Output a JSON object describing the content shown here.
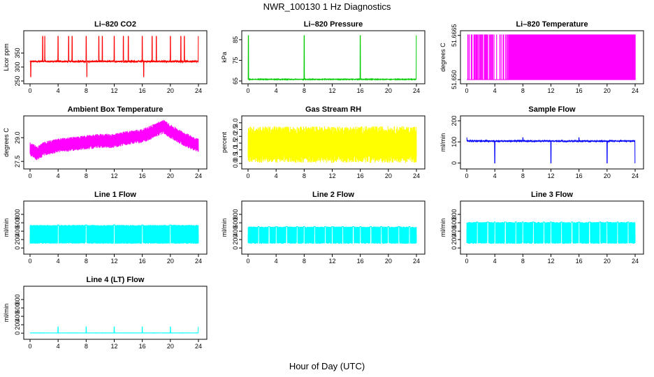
{
  "figure": {
    "title": "NWR_100130  1 Hz Diagnostics",
    "xlabel": "Hour of Day (UTC)"
  },
  "chart_data": [
    {
      "type": "line",
      "title": "Li–820 CO2",
      "ylabel": "Licor ppm",
      "color": "#ff0000",
      "xlim": [
        0,
        24.3
      ],
      "ylim": [
        250,
        420
      ],
      "xticks": [
        "0",
        "4",
        "8",
        "12",
        "16",
        "20",
        "24"
      ],
      "yticks": [
        {
          "v": 250,
          "label": "250"
        },
        {
          "v": 300,
          "label": "300"
        },
        {
          "v": 350,
          "label": "350"
        }
      ],
      "pattern": "co2",
      "base": 320,
      "noise": 3,
      "spikes": [
        1.8,
        2.1,
        4.0,
        5.5,
        6.0,
        8.0,
        9.8,
        10.3,
        12.0,
        13.3,
        14.0,
        16.0,
        17.4,
        18.0,
        20.0,
        21.5,
        22.0,
        24.0
      ],
      "spike_peak": 410,
      "dips": [
        0.1,
        8.1,
        16.2,
        24.3
      ],
      "dip_low": 265
    },
    {
      "type": "line",
      "title": "Li–820 Pressure",
      "ylabel": "kPa",
      "color": "#00cc00",
      "xlim": [
        0,
        24.3
      ],
      "ylim": [
        65,
        88
      ],
      "xticks": [
        "0",
        "4",
        "8",
        "12",
        "16",
        "20",
        "24"
      ],
      "yticks": [
        {
          "v": 65,
          "label": "65"
        },
        {
          "v": 75,
          "label": "75"
        },
        {
          "v": 85,
          "label": "85"
        }
      ],
      "pattern": "pressure",
      "base": 65.8,
      "noise": 0.15,
      "spikes": [
        0.05,
        8.0,
        16.0,
        24.0
      ],
      "spike_peak": 87
    },
    {
      "type": "line",
      "title": "Li–820 Temperature",
      "ylabel": "degrees C",
      "color": "#ff00ff",
      "xlim": [
        0,
        24.3
      ],
      "ylim": [
        51.6495,
        51.6672
      ],
      "xticks": [
        "0",
        "4",
        "8",
        "12",
        "16",
        "20",
        "24"
      ],
      "yticks": [
        {
          "v": 51.65,
          "label": "51.650"
        },
        {
          "v": 51.6665,
          "label": "51.6665"
        }
      ],
      "pattern": "binary",
      "low": 51.65,
      "high": 51.6667,
      "dense_from": 6.0,
      "dense_to": 24.0
    },
    {
      "type": "line",
      "title": "Ambient Box Temperature",
      "ylabel": "degrees C",
      "color": "#ff00ff",
      "xlim": [
        0,
        24.3
      ],
      "ylim": [
        27.2,
        30.2
      ],
      "xticks": [
        "0",
        "4",
        "8",
        "12",
        "16",
        "20",
        "24"
      ],
      "yticks": [
        {
          "v": 27.5,
          "label": "27.5"
        },
        {
          "v": 29.0,
          "label": "29.0"
        }
      ],
      "pattern": "band",
      "band_x": [
        0,
        1,
        2,
        4,
        6,
        8,
        10,
        12,
        14,
        16,
        18,
        19,
        20,
        22,
        24
      ],
      "band_mid": [
        28.3,
        28.0,
        28.3,
        28.5,
        28.6,
        28.7,
        28.8,
        28.8,
        29.0,
        29.1,
        29.5,
        29.7,
        29.4,
        28.9,
        28.5
      ],
      "band_half": 0.45
    },
    {
      "type": "line",
      "title": "Gas Stream RH",
      "ylabel": "percent",
      "color": "#ffff00",
      "xlim": [
        0,
        24.3
      ],
      "ylim": [
        -0.2,
        3.3
      ],
      "xticks": [
        "0",
        "4",
        "8",
        "12",
        "16",
        "20",
        "24"
      ],
      "yticks": [
        {
          "v": 0,
          "label": "0.0"
        },
        {
          "v": 0.5,
          "label": "0.5"
        },
        {
          "v": 1,
          "label": "1.0"
        },
        {
          "v": 1.5,
          "label": "1.5"
        },
        {
          "v": 2,
          "label": "2.0"
        },
        {
          "v": 2.5,
          "label": "2.5"
        },
        {
          "v": 3,
          "label": "3.0"
        }
      ],
      "pattern": "band",
      "band_x": [
        0,
        24
      ],
      "band_mid": [
        1.4,
        1.4
      ],
      "band_half": 1.35
    },
    {
      "type": "line",
      "title": "Sample Flow",
      "ylabel": "ml/min",
      "color": "#0000ff",
      "xlim": [
        0,
        24.3
      ],
      "ylim": [
        -15,
        210
      ],
      "xticks": [
        "0",
        "4",
        "8",
        "12",
        "16",
        "20",
        "24"
      ],
      "yticks": [
        {
          "v": 0,
          "label": "0"
        },
        {
          "v": 100,
          "label": "100"
        },
        {
          "v": 200,
          "label": "200"
        }
      ],
      "pattern": "flow",
      "base": 104,
      "noise": 3,
      "dips": [
        4.0,
        8.0,
        12.0,
        16.0,
        20.0,
        24.0
      ],
      "dip_low": 0,
      "spikes": [
        0.0,
        8.0,
        16.0
      ],
      "spike_peak": 120
    },
    {
      "type": "line",
      "title": "Line 1 Flow",
      "ylabel": "ml/min",
      "color": "#00ffff",
      "xlim": [
        0,
        24.3
      ],
      "ylim": [
        -80,
        1050
      ],
      "xticks": [
        "0",
        "4",
        "8",
        "12",
        "16",
        "20",
        "24"
      ],
      "yticks": [
        {
          "v": 0,
          "label": "0"
        },
        {
          "v": 200,
          "label": "200"
        },
        {
          "v": 400,
          "label": "400"
        },
        {
          "v": 600,
          "label": "600"
        },
        {
          "v": 800,
          "label": "800"
        }
      ],
      "pattern": "block",
      "low": 100,
      "high": 550,
      "gaps": [
        4.0,
        8.0,
        12.0,
        16.0,
        20.0
      ]
    },
    {
      "type": "line",
      "title": "Line 2 Flow",
      "ylabel": "ml/min",
      "color": "#00ffff",
      "xlim": [
        0,
        24.3
      ],
      "ylim": [
        -80,
        1050
      ],
      "xticks": [
        "0",
        "4",
        "8",
        "12",
        "16",
        "20",
        "24"
      ],
      "yticks": [
        {
          "v": 0,
          "label": "0"
        },
        {
          "v": 200,
          "label": "200"
        },
        {
          "v": 400,
          "label": "400"
        },
        {
          "v": 600,
          "label": "600"
        },
        {
          "v": 800,
          "label": "800"
        }
      ],
      "pattern": "block",
      "low": 100,
      "high": 510,
      "gaps": [
        1.5,
        3.0,
        4.0,
        5.5,
        7.0,
        8.0,
        9.5,
        11.0,
        12.0,
        13.5,
        15.0,
        16.0,
        17.5,
        19.0,
        20.0,
        21.5,
        23.0
      ]
    },
    {
      "type": "line",
      "title": "Line 3 Flow",
      "ylabel": "ml/min",
      "color": "#00ffff",
      "xlim": [
        0,
        24.3
      ],
      "ylim": [
        -80,
        1050
      ],
      "xticks": [
        "0",
        "4",
        "8",
        "12",
        "16",
        "20",
        "24"
      ],
      "yticks": [
        {
          "v": 0,
          "label": "0"
        },
        {
          "v": 200,
          "label": "200"
        },
        {
          "v": 400,
          "label": "400"
        },
        {
          "v": 600,
          "label": "600"
        },
        {
          "v": 800,
          "label": "800"
        }
      ],
      "pattern": "block",
      "low": 100,
      "high": 620,
      "gaps": [
        1.5,
        3.0,
        4.0,
        5.5,
        7.0,
        8.0,
        9.5,
        11.0,
        12.0,
        13.5,
        15.0,
        16.0,
        17.5,
        19.0,
        20.0,
        21.5,
        23.0
      ]
    },
    {
      "type": "line",
      "title": "Line 4 (LT) Flow",
      "ylabel": "ml/min",
      "color": "#00ffff",
      "xlim": [
        0,
        24.3
      ],
      "ylim": [
        -80,
        1050
      ],
      "xticks": [
        "0",
        "4",
        "8",
        "12",
        "16",
        "20",
        "24"
      ],
      "yticks": [
        {
          "v": 0,
          "label": "0"
        },
        {
          "v": 200,
          "label": "200"
        },
        {
          "v": 400,
          "label": "400"
        },
        {
          "v": 600,
          "label": "600"
        },
        {
          "v": 800,
          "label": "800"
        }
      ],
      "pattern": "flow",
      "base": 5,
      "noise": 2,
      "dips": [],
      "dip_low": 0,
      "spikes": [
        4.0,
        8.0,
        12.0,
        16.0,
        20.0,
        24.0
      ],
      "spike_peak": 150
    }
  ]
}
